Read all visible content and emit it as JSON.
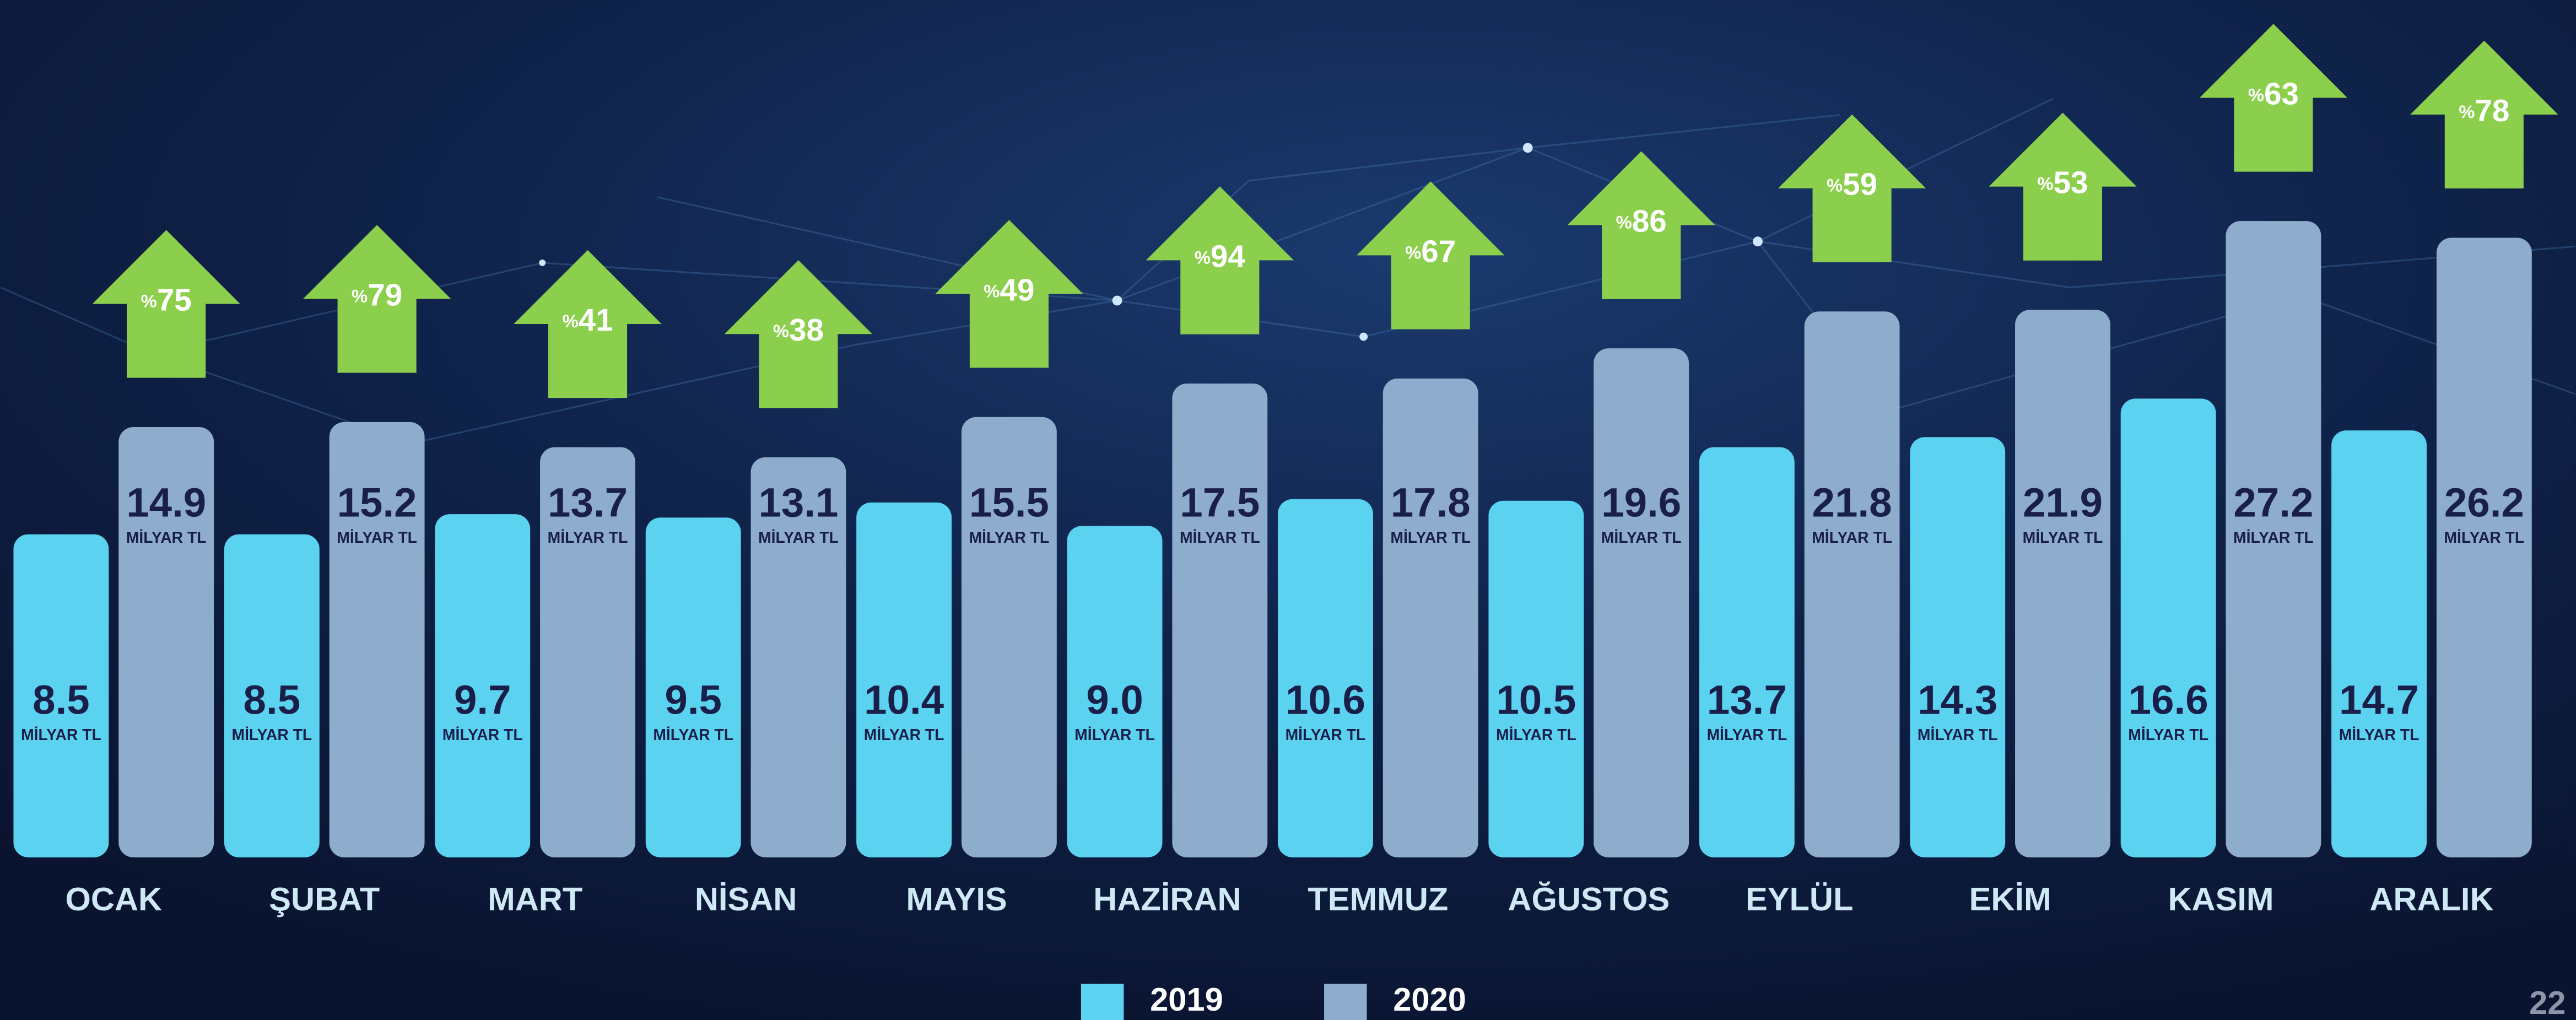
{
  "chart_data": {
    "type": "bar",
    "categories": [
      "OCAK",
      "ŞUBAT",
      "MART",
      "NİSAN",
      "MAYIS",
      "HAZİRAN",
      "TEMMUZ",
      "AĞUSTOS",
      "EYLÜL",
      "EKİM",
      "KASIM",
      "ARALIK"
    ],
    "unit": "MİLYAR TL",
    "series": [
      {
        "name": "2019",
        "color": "#5bd3f0",
        "values": [
          8.5,
          8.5,
          9.7,
          9.5,
          10.4,
          9.0,
          10.6,
          10.5,
          13.7,
          14.3,
          16.6,
          14.7
        ],
        "value_labels": [
          "8.5",
          "8.5",
          "9.7",
          "9.5",
          "10.4",
          "9.0",
          "10.6",
          "10.5",
          "13.7",
          "14.3",
          "16.6",
          "14.7"
        ]
      },
      {
        "name": "2020",
        "color": "#8eaccc",
        "values": [
          14.9,
          15.2,
          13.7,
          13.1,
          15.5,
          17.5,
          17.8,
          19.6,
          21.8,
          21.9,
          27.2,
          26.2
        ],
        "value_labels": [
          "14.9",
          "15.2",
          "13.7",
          "13.1",
          "15.5",
          "17.5",
          "17.8",
          "19.6",
          "21.8",
          "21.9",
          "27.2",
          "26.2"
        ]
      }
    ],
    "growth": {
      "symbol": "%",
      "color": "#8ccf4d",
      "values": [
        75,
        79,
        41,
        38,
        49,
        94,
        67,
        86,
        59,
        53,
        63,
        78
      ]
    },
    "legend": "bottom",
    "page_number": "22"
  }
}
